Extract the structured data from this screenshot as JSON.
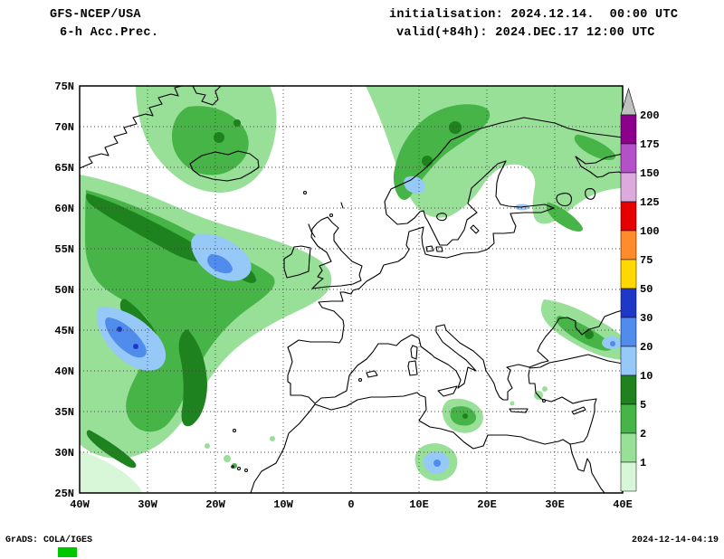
{
  "header": {
    "model": "GFS-NCEP/USA",
    "product": "6-h Acc.Prec.",
    "init_line": "initialisation: 2024.12.14.  00:00 UTC",
    "valid_line": "valid(+84h): 2024.DEC.17 12:00 UTC"
  },
  "map": {
    "lat_labels": [
      "75N",
      "70N",
      "65N",
      "60N",
      "55N",
      "50N",
      "45N",
      "40N",
      "35N",
      "30N",
      "25N"
    ],
    "lon_labels": [
      "40W",
      "30W",
      "20W",
      "10W",
      "0",
      "10E",
      "20E",
      "30E",
      "40E"
    ]
  },
  "colorbar": {
    "levels": [
      "200",
      "175",
      "150",
      "125",
      "100",
      "75",
      "50",
      "30",
      "20",
      "10",
      "5",
      "2",
      "1"
    ],
    "segment_colors_top_to_bottom": [
      "#8c008c",
      "#b450c8",
      "#dcaadc",
      "#e60000",
      "#ff8c28",
      "#ffd800",
      "#2038c8",
      "#508cec",
      "#96c8f8",
      "#1e821e",
      "#46b446",
      "#98df98",
      "#d8f6d8"
    ],
    "arrow_color": "#c0c0c0"
  },
  "palette": {
    "p1": "#d8f6d8",
    "p2": "#98df98",
    "p5": "#46b446",
    "p10": "#1e821e",
    "p20": "#96c8f8",
    "p30": "#508cec",
    "p50": "#2038c8"
  },
  "footer": {
    "credit": "GrADS: COLA/IGES",
    "timestamp": "2024-12-14-04:19",
    "mark_color": "#00c800"
  }
}
